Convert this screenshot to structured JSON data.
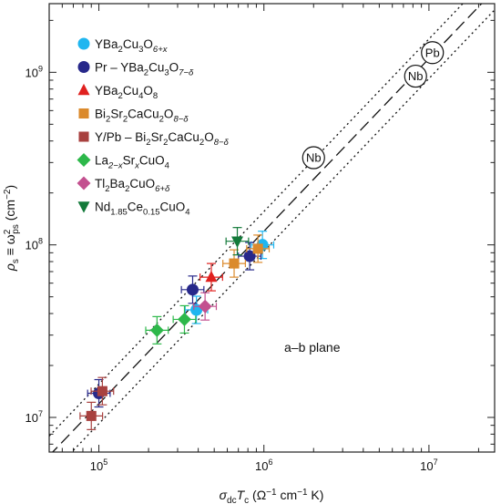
{
  "chart_data": {
    "type": "scatter",
    "x_scale": "log",
    "y_scale": "log",
    "xlim": [
      50000,
      25000000
    ],
    "ylim": [
      6300000,
      2500000000
    ],
    "x_major_ticks": [
      100000,
      1000000,
      10000000
    ],
    "y_major_ticks": [
      10000000,
      100000000,
      1000000000
    ],
    "x_tick_labels": [
      {
        "base": "10",
        "exp": "5"
      },
      {
        "base": "10",
        "exp": "6"
      },
      {
        "base": "10",
        "exp": "7"
      }
    ],
    "y_tick_labels": [
      {
        "base": "10",
        "exp": "7"
      },
      {
        "base": "10",
        "exp": "8"
      },
      {
        "base": "10",
        "exp": "9"
      }
    ],
    "xlabel": {
      "main": "σ",
      "sub1": "dc",
      "mid": "T",
      "sub2": "c",
      "rest": " (Ω",
      "sup": "−1",
      "rest2": " cm",
      "sup2": "−1",
      "rest3": " K)"
    },
    "ylabel": {
      "main": "ρ",
      "sub1": "s",
      "mid": " ≡ ω",
      "sup": "2",
      "sub2": "ps",
      "rest": " (cm",
      "sup2": "−2",
      "rest2": ")"
    },
    "annotation": "a–b plane",
    "legend": [
      {
        "parts": [
          [
            "YBa"
          ],
          [
            "2",
            "sub"
          ],
          [
            "Cu"
          ],
          [
            "3",
            "sub"
          ],
          [
            "O"
          ],
          [
            "6+x",
            "sub-it"
          ]
        ],
        "color": "#1fb6f0",
        "marker": "circle"
      },
      {
        "parts": [
          [
            "Pr – YBa"
          ],
          [
            "2",
            "sub"
          ],
          [
            "Cu"
          ],
          [
            "3",
            "sub"
          ],
          [
            "O"
          ],
          [
            "7−δ",
            "sub-it"
          ]
        ],
        "color": "#27288a",
        "marker": "circle"
      },
      {
        "parts": [
          [
            "YBa"
          ],
          [
            "2",
            "sub"
          ],
          [
            "Cu"
          ],
          [
            "4",
            "sub"
          ],
          [
            "O"
          ],
          [
            "8",
            "sub"
          ]
        ],
        "color": "#e0211f",
        "marker": "triangle-up"
      },
      {
        "parts": [
          [
            "Bi"
          ],
          [
            "2",
            "sub"
          ],
          [
            "Sr"
          ],
          [
            "2",
            "sub"
          ],
          [
            "CaCu"
          ],
          [
            "2",
            "sub"
          ],
          [
            "O"
          ],
          [
            "8−δ",
            "sub-it"
          ]
        ],
        "color": "#db8a2c",
        "marker": "square"
      },
      {
        "parts": [
          [
            "Y/Pb – Bi"
          ],
          [
            "2",
            "sub"
          ],
          [
            "Sr"
          ],
          [
            "2",
            "sub"
          ],
          [
            "CaCu"
          ],
          [
            "2",
            "sub"
          ],
          [
            "O"
          ],
          [
            "8−δ",
            "sub-it"
          ]
        ],
        "color": "#a8413f",
        "marker": "square"
      },
      {
        "parts": [
          [
            "La"
          ],
          [
            "2−x",
            "sub-it"
          ],
          [
            "Sr"
          ],
          [
            "x",
            "sub-it"
          ],
          [
            "CuO"
          ],
          [
            "4",
            "sub"
          ]
        ],
        "color": "#2db84a",
        "marker": "diamond"
      },
      {
        "parts": [
          [
            "Tl"
          ],
          [
            "2",
            "sub"
          ],
          [
            "Ba"
          ],
          [
            "2",
            "sub"
          ],
          [
            "CuO"
          ],
          [
            "6+δ",
            "sub-it"
          ]
        ],
        "color": "#c3508f",
        "marker": "diamond"
      },
      {
        "parts": [
          [
            "Nd"
          ],
          [
            "1.85",
            "sub"
          ],
          [
            "Ce"
          ],
          [
            "0.15",
            "sub"
          ],
          [
            "CuO"
          ],
          [
            "4",
            "sub"
          ]
        ],
        "color": "#137a3a",
        "marker": "triangle-down"
      }
    ],
    "points": [
      {
        "series": 0,
        "x": 980000,
        "y": 100000000
      },
      {
        "series": 0,
        "x": 390000,
        "y": 42000000
      },
      {
        "series": 1,
        "x": 820000,
        "y": 86000000
      },
      {
        "series": 1,
        "x": 370000,
        "y": 55000000
      },
      {
        "series": 1,
        "x": 100000,
        "y": 13800000
      },
      {
        "series": 2,
        "x": 480000,
        "y": 65000000
      },
      {
        "series": 3,
        "x": 660000,
        "y": 78000000
      },
      {
        "series": 3,
        "x": 920000,
        "y": 95000000
      },
      {
        "series": 4,
        "x": 90000,
        "y": 10200000
      },
      {
        "series": 4,
        "x": 105000,
        "y": 14200000
      },
      {
        "series": 5,
        "x": 225000,
        "y": 32000000
      },
      {
        "series": 5,
        "x": 330000,
        "y": 37000000
      },
      {
        "series": 6,
        "x": 440000,
        "y": 44000000
      },
      {
        "series": 7,
        "x": 690000,
        "y": 105000000
      }
    ],
    "reference_lines": [
      {
        "style": "dashed",
        "x1": 50000,
        "y1": 6000000,
        "x2": 25000000,
        "y2": 3000000000
      },
      {
        "style": "dotted",
        "x1": 50000,
        "y1": 7800000,
        "x2": 25000000,
        "y2": 3900000000
      },
      {
        "style": "dotted",
        "x1": 50000,
        "y1": 4600000,
        "x2": 25000000,
        "y2": 2300000000
      }
    ],
    "circled_labels": [
      {
        "text": "Nb",
        "x": 2000000,
        "y": 320000000
      },
      {
        "text": "Nb",
        "x": 8300000,
        "y": 950000000
      },
      {
        "text": "Pb",
        "x": 10500000,
        "y": 1300000000
      }
    ]
  }
}
